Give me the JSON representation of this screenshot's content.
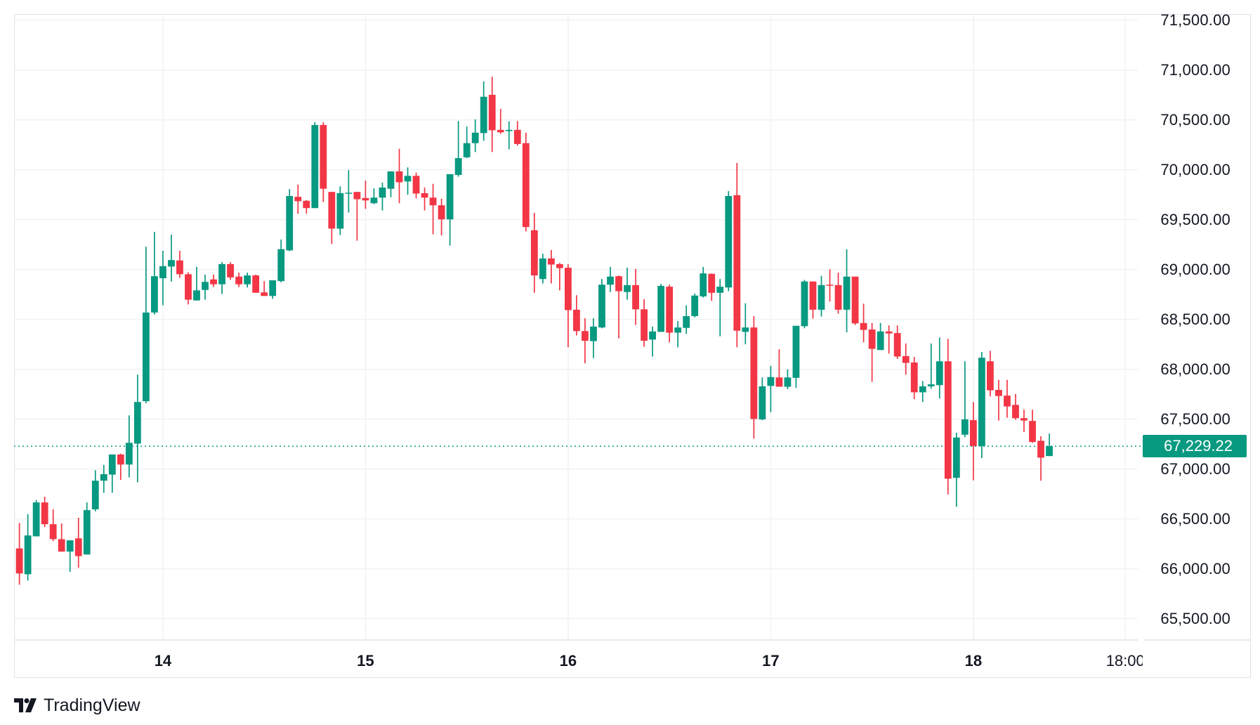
{
  "chart_data": {
    "type": "candlestick",
    "title": "",
    "ylim": [
      65500,
      71500
    ],
    "y_ticks": [
      {
        "value": 71500,
        "label": "71,500.00"
      },
      {
        "value": 71000,
        "label": "71,000.00"
      },
      {
        "value": 70500,
        "label": "70,500.00"
      },
      {
        "value": 70000,
        "label": "70,000.00"
      },
      {
        "value": 69500,
        "label": "69,500.00"
      },
      {
        "value": 69000,
        "label": "69,000.00"
      },
      {
        "value": 68500,
        "label": "68,500.00"
      },
      {
        "value": 68000,
        "label": "68,000.00"
      },
      {
        "value": 67500,
        "label": "67,500.00"
      },
      {
        "value": 67000,
        "label": "67,000.00"
      },
      {
        "value": 66500,
        "label": "66,500.00"
      },
      {
        "value": 66000,
        "label": "66,000.00"
      },
      {
        "value": 65500,
        "label": "65,500.00"
      }
    ],
    "x_ticks": [
      {
        "index": 17,
        "label": "14",
        "kind": "day"
      },
      {
        "index": 41,
        "label": "15",
        "kind": "day"
      },
      {
        "index": 65,
        "label": "16",
        "kind": "day"
      },
      {
        "index": 89,
        "label": "17",
        "kind": "day"
      },
      {
        "index": 113,
        "label": "18",
        "kind": "day"
      },
      {
        "index": 131,
        "label": "18:00",
        "kind": "time"
      }
    ],
    "last_price": {
      "value": 67229.22,
      "label": "67,229.22"
    },
    "colors": {
      "up": "#089981",
      "down": "#F23645",
      "grid": "#f0f1f4"
    },
    "ohlc_fields": [
      "open",
      "high",
      "low",
      "close"
    ],
    "candles": [
      [
        66204,
        66459,
        65840,
        65953
      ],
      [
        65945,
        66548,
        65881,
        66334
      ],
      [
        66325,
        66689,
        66325,
        66665
      ],
      [
        66665,
        66722,
        66418,
        66447
      ],
      [
        66447,
        66596,
        66277,
        66297
      ],
      [
        66297,
        66455,
        66172,
        66172
      ],
      [
        66172,
        66285,
        65970,
        66285
      ],
      [
        66305,
        66511,
        66010,
        66127
      ],
      [
        66143,
        66665,
        66143,
        66588
      ],
      [
        66596,
        66988,
        66576,
        66883
      ],
      [
        66883,
        67041,
        66762,
        66948
      ],
      [
        66944,
        67146,
        66762,
        67146
      ],
      [
        67146,
        67154,
        66891,
        67045
      ],
      [
        67045,
        67538,
        66916,
        67263
      ],
      [
        67255,
        67946,
        66867,
        67672
      ],
      [
        67680,
        69228,
        67659,
        68569
      ],
      [
        68569,
        69378,
        68549,
        68933
      ],
      [
        68913,
        69188,
        68642,
        69034
      ],
      [
        69030,
        69349,
        68880,
        69095
      ],
      [
        69091,
        69188,
        68917,
        68953
      ],
      [
        68953,
        68973,
        68650,
        68698
      ],
      [
        68690,
        69026,
        68690,
        68791
      ],
      [
        68795,
        68949,
        68698,
        68876
      ],
      [
        68901,
        68949,
        68824,
        68852
      ],
      [
        68852,
        69074,
        68755,
        69054
      ],
      [
        69054,
        69074,
        68896,
        68921
      ],
      [
        68929,
        68969,
        68824,
        68852
      ],
      [
        68852,
        68969,
        68820,
        68941
      ],
      [
        68941,
        68949,
        68767,
        68767
      ],
      [
        68771,
        68884,
        68735,
        68735
      ],
      [
        68735,
        68892,
        68706,
        68892
      ],
      [
        68884,
        69301,
        68872,
        69204
      ],
      [
        69192,
        69806,
        69184,
        69737
      ],
      [
        69729,
        69851,
        69559,
        69685
      ],
      [
        69689,
        69697,
        69559,
        69616
      ],
      [
        69616,
        70477,
        69616,
        70449
      ],
      [
        70449,
        70477,
        69677,
        69810
      ],
      [
        69778,
        69778,
        69256,
        69410
      ],
      [
        69410,
        69834,
        69345,
        69766
      ],
      [
        69766,
        69996,
        69572,
        69770
      ],
      [
        69778,
        69778,
        69289,
        69705
      ],
      [
        69717,
        69891,
        69608,
        69693
      ],
      [
        69665,
        69814,
        69656,
        69721
      ],
      [
        69721,
        69871,
        69592,
        69822
      ],
      [
        69810,
        69984,
        69725,
        69984
      ],
      [
        69984,
        70210,
        69665,
        69875
      ],
      [
        69883,
        70024,
        69749,
        69939
      ],
      [
        69939,
        69972,
        69713,
        69762
      ],
      [
        69766,
        69822,
        69592,
        69721
      ],
      [
        69721,
        69859,
        69353,
        69644
      ],
      [
        69644,
        69709,
        69341,
        69503
      ],
      [
        69503,
        69956,
        69240,
        69956
      ],
      [
        69948,
        70489,
        69931,
        70117
      ],
      [
        70125,
        70433,
        70117,
        70267
      ],
      [
        70267,
        70505,
        70178,
        70372
      ],
      [
        70368,
        70885,
        70291,
        70732
      ],
      [
        70752,
        70934,
        70178,
        70396
      ],
      [
        70400,
        70611,
        70360,
        70376
      ],
      [
        70388,
        70485,
        70206,
        70400
      ],
      [
        70400,
        70489,
        70243,
        70259
      ],
      [
        70267,
        70372,
        69382,
        69426
      ],
      [
        69394,
        69568,
        68767,
        68941
      ],
      [
        68905,
        69159,
        68860,
        69111
      ],
      [
        69111,
        69196,
        68860,
        69050
      ],
      [
        69054,
        69066,
        68791,
        69014
      ],
      [
        69018,
        69054,
        68221,
        68593
      ],
      [
        68597,
        68743,
        68339,
        68383
      ],
      [
        68383,
        68512,
        68060,
        68286
      ],
      [
        68282,
        68512,
        68112,
        68428
      ],
      [
        68419,
        68905,
        68411,
        68848
      ],
      [
        68848,
        69026,
        68775,
        68929
      ],
      [
        68933,
        68941,
        68310,
        68783
      ],
      [
        68775,
        69018,
        68698,
        68844
      ],
      [
        68844,
        69006,
        68444,
        68601
      ],
      [
        68601,
        68702,
        68225,
        68286
      ],
      [
        68298,
        68428,
        68128,
        68379
      ],
      [
        68375,
        68856,
        68375,
        68836
      ],
      [
        68828,
        68848,
        68270,
        68367
      ],
      [
        68367,
        68484,
        68221,
        68419
      ],
      [
        68415,
        68642,
        68355,
        68533
      ],
      [
        68533,
        68759,
        68520,
        68739
      ],
      [
        68731,
        69026,
        68719,
        68961
      ],
      [
        68957,
        68961,
        68686,
        68767
      ],
      [
        68767,
        68905,
        68330,
        68828
      ],
      [
        68820,
        69786,
        68783,
        69737
      ],
      [
        69745,
        70069,
        68221,
        68387
      ],
      [
        68375,
        68662,
        68250,
        68419
      ],
      [
        68419,
        68533,
        67304,
        67502
      ],
      [
        67498,
        67918,
        67490,
        67829
      ],
      [
        67833,
        68035,
        67570,
        67922
      ],
      [
        67918,
        68201,
        67825,
        67825
      ],
      [
        67825,
        67999,
        67801,
        67918
      ],
      [
        67914,
        68436,
        67813,
        68436
      ],
      [
        68432,
        68896,
        68411,
        68880
      ],
      [
        68880,
        68880,
        68508,
        68597
      ],
      [
        68597,
        68937,
        68529,
        68844
      ],
      [
        68848,
        69002,
        68678,
        68840
      ],
      [
        68844,
        68969,
        68557,
        68597
      ],
      [
        68597,
        69204,
        68371,
        68929
      ],
      [
        68929,
        68929,
        68444,
        68460
      ],
      [
        68464,
        68658,
        68270,
        68395
      ],
      [
        68399,
        68464,
        67874,
        68205
      ],
      [
        68193,
        68464,
        68193,
        68379
      ],
      [
        68379,
        68440,
        68157,
        68359
      ],
      [
        68363,
        68440,
        68104,
        68128
      ],
      [
        68132,
        68258,
        67946,
        68064
      ],
      [
        68068,
        68124,
        67700,
        67769
      ],
      [
        67769,
        67882,
        67672,
        67829
      ],
      [
        67829,
        68258,
        67805,
        67849
      ],
      [
        67841,
        68318,
        67708,
        68080
      ],
      [
        68080,
        68306,
        66746,
        66903
      ],
      [
        66912,
        67364,
        66621,
        67316
      ],
      [
        67344,
        68080,
        67320,
        67498
      ],
      [
        67490,
        67672,
        66887,
        67231
      ],
      [
        67231,
        68173,
        67110,
        68116
      ],
      [
        68080,
        68185,
        67728,
        67789
      ],
      [
        67793,
        67894,
        67486,
        67732
      ],
      [
        67736,
        67894,
        67514,
        67627
      ],
      [
        67643,
        67752,
        67494,
        67510
      ],
      [
        67510,
        67595,
        67372,
        67486
      ],
      [
        67482,
        67595,
        67263,
        67271
      ],
      [
        67283,
        67328,
        66883,
        67114
      ],
      [
        67130,
        67356,
        67130,
        67229.22
      ]
    ]
  },
  "branding": {
    "logo_text": "TradingView"
  }
}
